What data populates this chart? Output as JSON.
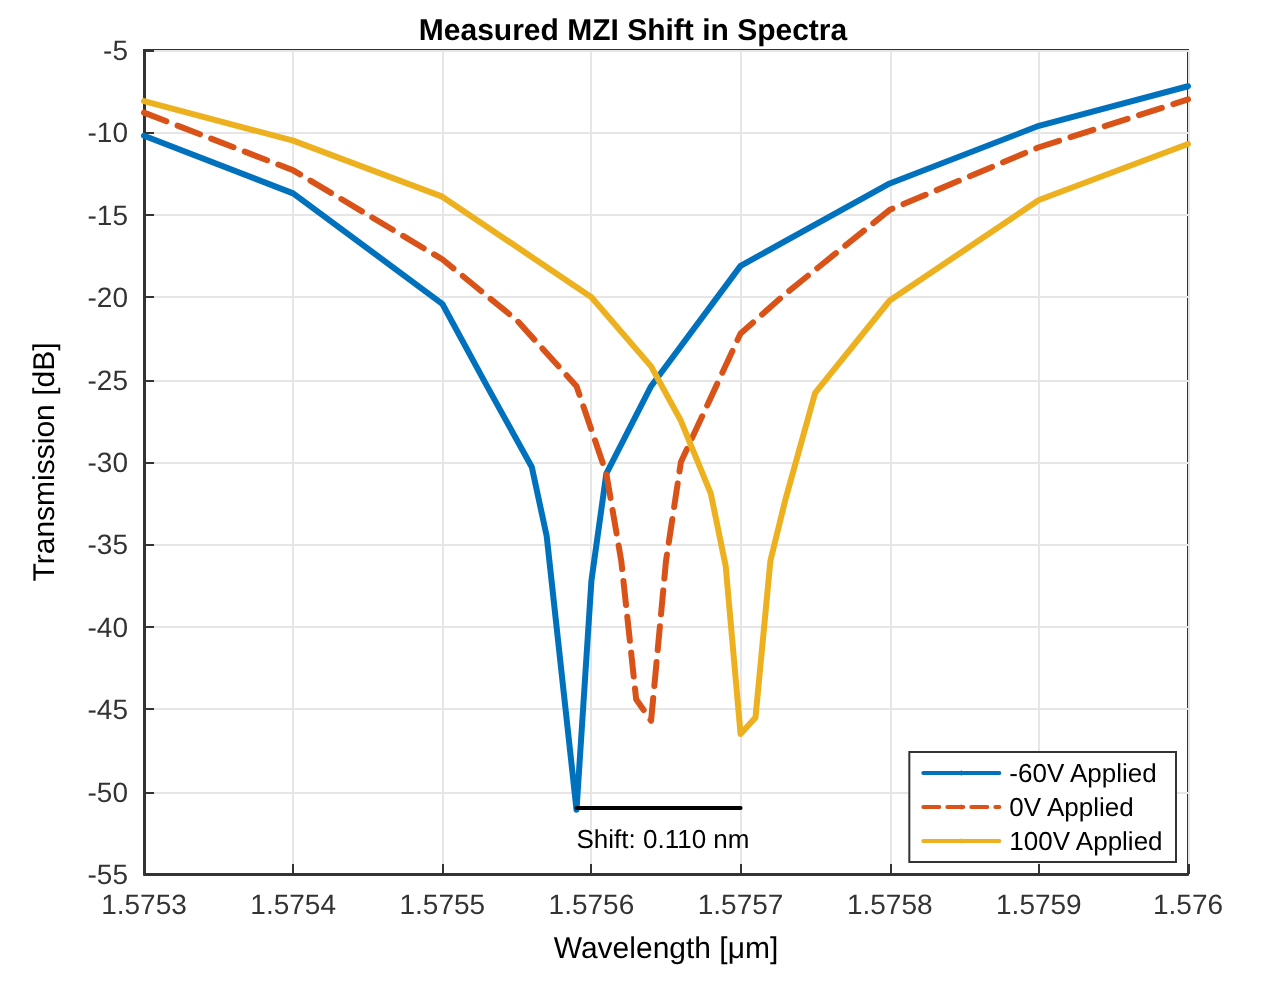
{
  "chart_data": {
    "type": "line",
    "title": "Measured MZI Shift in Spectra",
    "xlabel": "Wavelength [μm]",
    "ylabel": "Transmission [dB]",
    "xlim": [
      1.5753,
      1.576
    ],
    "xticks": [
      1.5753,
      1.5754,
      1.5755,
      1.5756,
      1.5757,
      1.5758,
      1.5759,
      1.576
    ],
    "ylim": [
      -55,
      -5
    ],
    "yticks": [
      -55,
      -50,
      -45,
      -40,
      -35,
      -30,
      -25,
      -20,
      -15,
      -10,
      -5
    ],
    "grid": true,
    "legend": "bottom right",
    "marker": "none",
    "series": [
      {
        "name": "-60V Applied",
        "color": "#0072bd",
        "line_style": "solid",
        "x": [
          1.5753,
          1.5754,
          1.5755,
          1.57553,
          1.57556,
          1.57557,
          1.57559,
          1.5756,
          1.57561,
          1.57564,
          1.5757,
          1.5758,
          1.5759,
          1.576
        ],
        "values": [
          -10.2,
          -13.7,
          -20.4,
          -25.4,
          -30.3,
          -34.5,
          -51.1,
          -37.2,
          -30.7,
          -25.4,
          -18.1,
          -13.1,
          -9.6,
          -7.2
        ]
      },
      {
        "name": "0V Applied",
        "color": "#d95319",
        "line_style": "dashed",
        "x": [
          1.5753,
          1.5754,
          1.5755,
          1.57555,
          1.57559,
          1.57561,
          1.57562,
          1.57563,
          1.57564,
          1.57565,
          1.57566,
          1.5757,
          1.57573,
          1.5758,
          1.5759,
          1.576
        ],
        "values": [
          -8.8,
          -12.3,
          -17.7,
          -21.4,
          -25.4,
          -30.7,
          -36,
          -44.4,
          -45.7,
          -36,
          -30,
          -22.2,
          -19.8,
          -14.7,
          -10.9,
          -8
        ]
      },
      {
        "name": "100V Applied",
        "color": "#edb120",
        "line_style": "solid",
        "x": [
          1.5753,
          1.5754,
          1.5755,
          1.5756,
          1.57564,
          1.57566,
          1.57568,
          1.57569,
          1.5757,
          1.57571,
          1.57572,
          1.57573,
          1.57575,
          1.5758,
          1.5759,
          1.576
        ],
        "values": [
          -8.1,
          -10.5,
          -13.9,
          -20,
          -24.2,
          -27.5,
          -31.9,
          -36.3,
          -46.5,
          -45.5,
          -36,
          -32.3,
          -25.8,
          -20.2,
          -14.1,
          -10.7
        ]
      },
      {
        "color": "#000000",
        "line_style": "solid",
        "x": [
          1.57559,
          1.5757
        ],
        "values": [
          -51,
          -51
        ]
      }
    ],
    "annotations": [
      {
        "text": "Shift: 0.110 nm",
        "x": 1.57559,
        "y": -51
      }
    ]
  }
}
